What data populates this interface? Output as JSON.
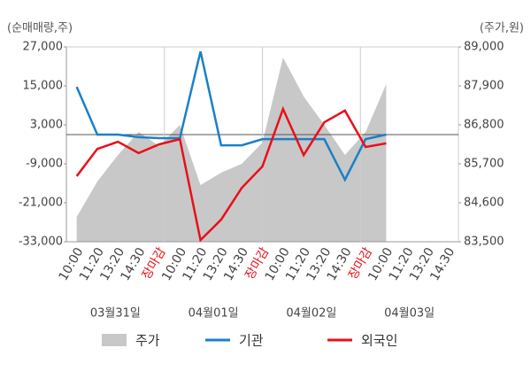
{
  "chart_data": {
    "type": "combo",
    "y_title": "(순매매량,주)",
    "y2_title": "(주가,원)",
    "categories": [
      "10:00",
      "11:20",
      "13:20",
      "14:30",
      "장마감",
      "10:00",
      "11:20",
      "13:20",
      "14:30",
      "장마감",
      "10:00",
      "11:20",
      "13:20",
      "14:30",
      "장마감",
      "10:00",
      "11:20",
      "13:20",
      "14:30"
    ],
    "category_colors": [
      "#444",
      "#444",
      "#444",
      "#444",
      "#e8101a",
      "#444",
      "#444",
      "#444",
      "#444",
      "#e8101a",
      "#444",
      "#444",
      "#444",
      "#444",
      "#e8101a",
      "#444",
      "#444",
      "#444",
      "#444"
    ],
    "day_labels": [
      "03월31일",
      "04월01일",
      "04월02일",
      "04월03일"
    ],
    "ylim": [
      -33000,
      27000
    ],
    "yticks": [
      {
        "value": 27000,
        "label": "27,000"
      },
      {
        "value": 15000,
        "label": "15,000"
      },
      {
        "value": 3000,
        "label": "3,000"
      },
      {
        "value": -9000,
        "label": "-9,000"
      },
      {
        "value": -21000,
        "label": "-21,000"
      },
      {
        "value": -33000,
        "label": "-33,000"
      }
    ],
    "y2lim": [
      83500,
      89000
    ],
    "y2ticks": [
      {
        "value": 89000,
        "label": "89,000"
      },
      {
        "value": 87900,
        "label": "87,900"
      },
      {
        "value": 86800,
        "label": "86,800"
      },
      {
        "value": 85700,
        "label": "85,700"
      },
      {
        "value": 84600,
        "label": "84,600"
      },
      {
        "value": 83500,
        "label": "83,500"
      }
    ],
    "series": [
      {
        "name": "주가",
        "kind": "area",
        "axis": "y2",
        "color": "#c8c8c8",
        "values": [
          84200,
          85200,
          85950,
          86600,
          86200,
          86800,
          85100,
          85450,
          85700,
          86300,
          88700,
          87600,
          86800,
          85950,
          86600,
          87950,
          null,
          null,
          null
        ]
      },
      {
        "name": "기관",
        "kind": "line",
        "color": "#1b80c8",
        "values": [
          14700,
          0,
          0,
          -800,
          -1100,
          -1100,
          25600,
          -3300,
          -3300,
          -1400,
          -1400,
          -1400,
          -1400,
          -13900,
          -1400,
          0,
          null,
          null,
          null
        ]
      },
      {
        "name": "외국인",
        "kind": "line",
        "color": "#e8101a",
        "values": [
          -12800,
          -4400,
          -2200,
          -5700,
          -3000,
          -1400,
          -32500,
          -26200,
          -16400,
          -9800,
          7900,
          -6300,
          3800,
          7400,
          -3800,
          -2700,
          null,
          null,
          null
        ]
      }
    ]
  }
}
